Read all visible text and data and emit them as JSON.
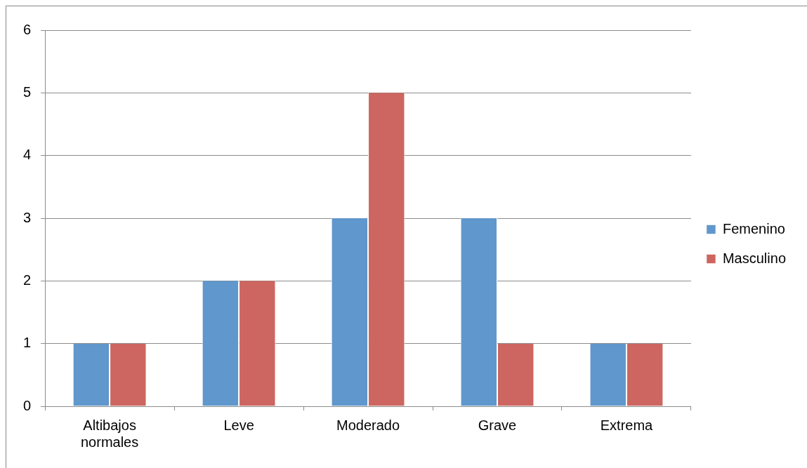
{
  "chart_data": {
    "type": "bar",
    "categories": [
      "Altibajos normales",
      "Leve",
      "Moderado",
      "Grave",
      "Extrema"
    ],
    "series": [
      {
        "name": "Femenino",
        "color": "#6097cc",
        "values": [
          1,
          2,
          3,
          3,
          1
        ]
      },
      {
        "name": "Masculino",
        "color": "#cd6660",
        "values": [
          1,
          2,
          5,
          1,
          1
        ]
      }
    ],
    "ylim": [
      0,
      6
    ],
    "yticks": [
      0,
      1,
      2,
      3,
      4,
      5,
      6
    ],
    "grid": "y",
    "legend": "right"
  }
}
